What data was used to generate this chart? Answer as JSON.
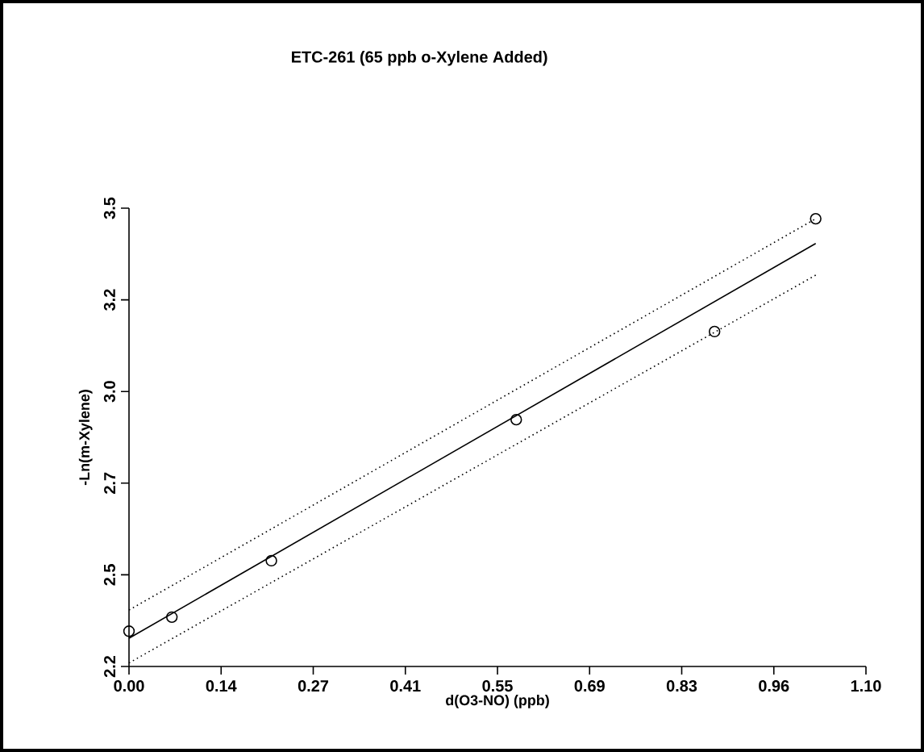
{
  "chart_data": {
    "type": "scatter",
    "title": "ETC-261 (65 ppb o-Xylene Added)",
    "xlabel": "d(O3-NO) (ppb)",
    "ylabel": "-Ln(m-Xylene)",
    "xlim": [
      0,
      1.1
    ],
    "xticks": [
      {
        "value": 0,
        "label": "0.00"
      },
      {
        "value": 0.1375,
        "label": "0.14"
      },
      {
        "value": 0.275,
        "label": "0.27"
      },
      {
        "value": 0.4125,
        "label": "0.41"
      },
      {
        "value": 0.55,
        "label": "0.55"
      },
      {
        "value": 0.6875,
        "label": "0.69"
      },
      {
        "value": 0.825,
        "label": "0.83"
      },
      {
        "value": 0.9625,
        "label": "0.96"
      },
      {
        "value": 1.1,
        "label": "1.10"
      }
    ],
    "ylim": [
      2.2,
      3.5
    ],
    "yticks": [
      {
        "value": 2.2,
        "label": "2.2"
      },
      {
        "value": 2.46,
        "label": "2.5"
      },
      {
        "value": 2.72,
        "label": "2.7"
      },
      {
        "value": 2.98,
        "label": "3.0"
      },
      {
        "value": 3.24,
        "label": "3.2"
      },
      {
        "value": 3.5,
        "label": "3.5"
      }
    ],
    "series": [
      {
        "color": "#000000",
        "marker": "circle",
        "x": [
          0.0,
          0.064,
          0.2125,
          0.578,
          0.874,
          1.025
        ],
        "values": [
          2.3,
          2.34,
          2.5,
          2.9,
          3.15,
          3.47
        ]
      },
      {
        "type": "line",
        "color": "#000000",
        "line_style": "solid",
        "marker": "none",
        "x": [
          0.0,
          1.025
        ],
        "values": [
          2.28,
          3.4
        ]
      },
      {
        "type": "line",
        "color": "#000000",
        "line_style": "dotted",
        "marker": "none",
        "x": [
          0.0,
          1.025
        ],
        "values": [
          2.36,
          3.47
        ]
      },
      {
        "type": "line",
        "color": "#000000",
        "line_style": "dotted",
        "marker": "none",
        "x": [
          0.0,
          1.025
        ],
        "values": [
          2.21,
          3.31
        ]
      }
    ]
  }
}
